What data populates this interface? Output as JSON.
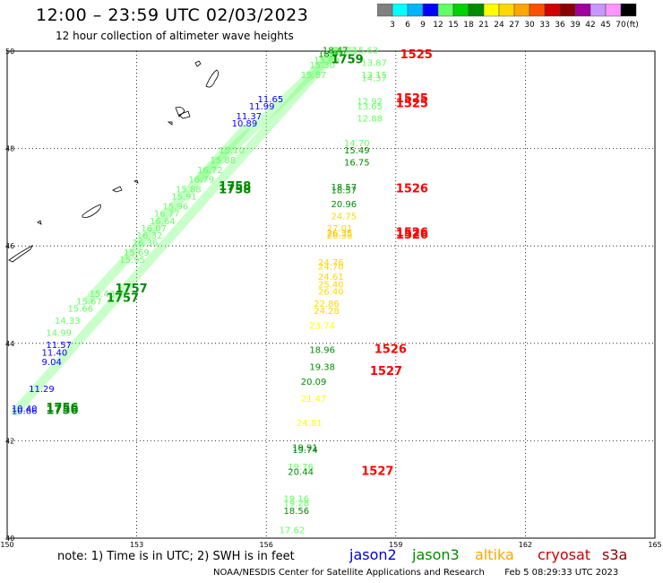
{
  "header": {
    "title": "12:00 – 23:59 UTC 02/03/2023",
    "subtitle": "12 hour collection of altimeter wave heights"
  },
  "colorbar": {
    "labels": [
      "3",
      "6",
      "9",
      "12",
      "15",
      "18",
      "21",
      "24",
      "27",
      "30",
      "33",
      "36",
      "39",
      "42",
      "45",
      "70"
    ],
    "unit": "(ft)",
    "colors": [
      "#808080",
      "#00ffff",
      "#00b4ff",
      "#0000ff",
      "#64ff64",
      "#00d200",
      "#008c00",
      "#ffff00",
      "#ffd700",
      "#ffa500",
      "#ff5000",
      "#d20000",
      "#8c0000",
      "#a000a0",
      "#c896ff",
      "#ff96ff",
      "#000000"
    ]
  },
  "axes": {
    "lon_labels": [
      "150",
      "153",
      "156",
      "159",
      "162",
      "165"
    ],
    "lat_labels": [
      "50",
      "48",
      "46",
      "44",
      "42",
      "40"
    ]
  },
  "chart_data": {
    "type": "scatter",
    "xlim": [
      150,
      165
    ],
    "ylim": [
      40,
      50
    ],
    "xlabel": "",
    "ylabel": "",
    "tracks": [
      {
        "name": "jason3",
        "color": "#64ff64",
        "start": [
          150.2,
          42.6
        ],
        "end": [
          157.6,
          50.0
        ],
        "time": "1756",
        "time_pos": [
          151.0,
          42.6
        ]
      },
      {
        "name": "jason3",
        "color": "#64ff64",
        "start": [
          151.9,
          44.9
        ],
        "end": [
          155.5,
          48.4
        ],
        "time": "1757",
        "time_pos": [
          152.2,
          45.2
        ]
      },
      {
        "name": "jason3",
        "color": "#64ff64",
        "start": [
          154.5,
          47.4
        ],
        "end": [
          157.6,
          50.0
        ],
        "time": "1758",
        "time_pos": [
          154.8,
          47.8
        ]
      },
      {
        "name": "jason3",
        "color": "#64ff64",
        "start": [
          157.6,
          50.0
        ],
        "end": [
          158.0,
          50.0
        ],
        "time": "1759",
        "time_pos": [
          158.0,
          49.8
        ]
      }
    ],
    "labels": [
      {
        "text": "15.63",
        "lon": 158.0,
        "lat": 49.95,
        "color": "#64ff64"
      },
      {
        "text": "18.47",
        "lon": 157.3,
        "lat": 49.95,
        "color": "#008c00"
      },
      {
        "text": "18.07",
        "lon": 157.2,
        "lat": 49.88,
        "color": "#008c00"
      },
      {
        "text": "15.89",
        "lon": 157.1,
        "lat": 49.75,
        "color": "#64ff64"
      },
      {
        "text": "15.30",
        "lon": 157.0,
        "lat": 49.65,
        "color": "#64ff64"
      },
      {
        "text": "15.87",
        "lon": 156.8,
        "lat": 49.45,
        "color": "#64ff64"
      },
      {
        "text": "13.87",
        "lon": 158.2,
        "lat": 49.7,
        "color": "#64ff64"
      },
      {
        "text": "13.15",
        "lon": 158.2,
        "lat": 49.45,
        "color": "#64ff64"
      },
      {
        "text": "14.37",
        "lon": 158.2,
        "lat": 49.38,
        "color": "#64ff64"
      },
      {
        "text": "11.65",
        "lon": 155.8,
        "lat": 48.95,
        "color": "#0000ff"
      },
      {
        "text": "11.99",
        "lon": 155.6,
        "lat": 48.8,
        "color": "#0000ff"
      },
      {
        "text": "11.37",
        "lon": 155.3,
        "lat": 48.6,
        "color": "#0000ff"
      },
      {
        "text": "10.89",
        "lon": 155.2,
        "lat": 48.45,
        "color": "#0000ff"
      },
      {
        "text": "12.92",
        "lon": 158.1,
        "lat": 48.9,
        "color": "#64ff64"
      },
      {
        "text": "13.65",
        "lon": 158.1,
        "lat": 48.8,
        "color": "#64ff64"
      },
      {
        "text": "12.88",
        "lon": 158.1,
        "lat": 48.55,
        "color": "#64ff64"
      },
      {
        "text": "14.70",
        "lon": 157.8,
        "lat": 48.05,
        "color": "#64ff64"
      },
      {
        "text": "15.49",
        "lon": 157.8,
        "lat": 47.9,
        "color": "#008c00"
      },
      {
        "text": "16.75",
        "lon": 157.8,
        "lat": 47.65,
        "color": "#008c00"
      },
      {
        "text": "15.10",
        "lon": 154.9,
        "lat": 47.9,
        "color": "#64ff64"
      },
      {
        "text": "15.88",
        "lon": 154.7,
        "lat": 47.7,
        "color": "#64ff64"
      },
      {
        "text": "16.72",
        "lon": 154.4,
        "lat": 47.5,
        "color": "#64ff64"
      },
      {
        "text": "16.79",
        "lon": 154.2,
        "lat": 47.3,
        "color": "#64ff64"
      },
      {
        "text": "15.88",
        "lon": 153.9,
        "lat": 47.1,
        "color": "#64ff64"
      },
      {
        "text": "15.91",
        "lon": 153.8,
        "lat": 46.95,
        "color": "#64ff64"
      },
      {
        "text": "15.96",
        "lon": 153.6,
        "lat": 46.75,
        "color": "#64ff64"
      },
      {
        "text": "16.77",
        "lon": 153.4,
        "lat": 46.6,
        "color": "#64ff64"
      },
      {
        "text": "16.64",
        "lon": 153.3,
        "lat": 46.45,
        "color": "#64ff64"
      },
      {
        "text": "16.07",
        "lon": 153.1,
        "lat": 46.3,
        "color": "#64ff64"
      },
      {
        "text": "16.32",
        "lon": 153.0,
        "lat": 46.15,
        "color": "#64ff64"
      },
      {
        "text": "16.36",
        "lon": 152.9,
        "lat": 46.0,
        "color": "#64ff64"
      },
      {
        "text": "15.69",
        "lon": 152.7,
        "lat": 45.8,
        "color": "#64ff64"
      },
      {
        "text": "15.95",
        "lon": 152.6,
        "lat": 45.65,
        "color": "#64ff64"
      },
      {
        "text": "18.57",
        "lon": 157.5,
        "lat": 47.15,
        "color": "#008c00"
      },
      {
        "text": "18.57",
        "lon": 157.5,
        "lat": 47.08,
        "color": "#008c00"
      },
      {
        "text": "20.96",
        "lon": 157.5,
        "lat": 46.8,
        "color": "#008c00"
      },
      {
        "text": "24.75",
        "lon": 157.5,
        "lat": 46.55,
        "color": "#ffd700"
      },
      {
        "text": "27.01",
        "lon": 157.4,
        "lat": 46.3,
        "color": "#ffd700"
      },
      {
        "text": "26.35",
        "lon": 157.4,
        "lat": 46.2,
        "color": "#ffa500"
      },
      {
        "text": "26.38",
        "lon": 157.4,
        "lat": 46.15,
        "color": "#ffd700"
      },
      {
        "text": "24.76",
        "lon": 157.2,
        "lat": 45.6,
        "color": "#ffd700"
      },
      {
        "text": "24.70",
        "lon": 157.2,
        "lat": 45.52,
        "color": "#ffd700"
      },
      {
        "text": "24.61",
        "lon": 157.2,
        "lat": 45.3,
        "color": "#ffd700"
      },
      {
        "text": "25.40",
        "lon": 157.2,
        "lat": 45.15,
        "color": "#ffd700"
      },
      {
        "text": "26.40",
        "lon": 157.2,
        "lat": 45.0,
        "color": "#ffd700"
      },
      {
        "text": "22.86",
        "lon": 157.1,
        "lat": 44.75,
        "color": "#ffd700"
      },
      {
        "text": "24.28",
        "lon": 157.1,
        "lat": 44.6,
        "color": "#ffd700"
      },
      {
        "text": "23.74",
        "lon": 157.0,
        "lat": 44.3,
        "color": "#ffff00"
      },
      {
        "text": "15.43",
        "lon": 151.9,
        "lat": 44.95,
        "color": "#64ff64"
      },
      {
        "text": "15.67",
        "lon": 151.6,
        "lat": 44.8,
        "color": "#64ff64"
      },
      {
        "text": "15.66",
        "lon": 151.4,
        "lat": 44.65,
        "color": "#64ff64"
      },
      {
        "text": "14.33",
        "lon": 151.1,
        "lat": 44.4,
        "color": "#64ff64"
      },
      {
        "text": "14.99",
        "lon": 150.9,
        "lat": 44.15,
        "color": "#64ff64"
      },
      {
        "text": "11.57",
        "lon": 150.9,
        "lat": 43.9,
        "color": "#0000ff"
      },
      {
        "text": "11.40",
        "lon": 150.8,
        "lat": 43.75,
        "color": "#0000ff"
      },
      {
        "text": "9.04",
        "lon": 150.8,
        "lat": 43.55,
        "color": "#0000ff"
      },
      {
        "text": "11.29",
        "lon": 150.5,
        "lat": 43.0,
        "color": "#0000ff"
      },
      {
        "text": "10.40",
        "lon": 150.1,
        "lat": 42.6,
        "color": "#0000ff"
      },
      {
        "text": "10.66",
        "lon": 150.1,
        "lat": 42.55,
        "color": "#0000ff"
      },
      {
        "text": "18.96",
        "lon": 157.0,
        "lat": 43.8,
        "color": "#008c00"
      },
      {
        "text": "19.38",
        "lon": 157.0,
        "lat": 43.45,
        "color": "#008c00"
      },
      {
        "text": "20.09",
        "lon": 156.8,
        "lat": 43.15,
        "color": "#008c00"
      },
      {
        "text": "21.47",
        "lon": 156.8,
        "lat": 42.8,
        "color": "#ffff00"
      },
      {
        "text": "24.81",
        "lon": 156.7,
        "lat": 42.3,
        "color": "#ffff00"
      },
      {
        "text": "19.91",
        "lon": 156.6,
        "lat": 41.8,
        "color": "#008c00"
      },
      {
        "text": "19.74",
        "lon": 156.6,
        "lat": 41.75,
        "color": "#008c00"
      },
      {
        "text": "19.76",
        "lon": 156.5,
        "lat": 41.4,
        "color": "#64ff64"
      },
      {
        "text": "20.44",
        "lon": 156.5,
        "lat": 41.3,
        "color": "#008c00"
      },
      {
        "text": "19.16",
        "lon": 156.4,
        "lat": 40.75,
        "color": "#64ff64"
      },
      {
        "text": "19.28",
        "lon": 156.4,
        "lat": 40.65,
        "color": "#64ff64"
      },
      {
        "text": "18.56",
        "lon": 156.4,
        "lat": 40.5,
        "color": "#008c00"
      },
      {
        "text": "17.62",
        "lon": 156.3,
        "lat": 40.1,
        "color": "#64ff64"
      }
    ],
    "track_times": [
      {
        "text": "1525",
        "lon": 159.1,
        "lat": 49.85,
        "color": "#ff0000"
      },
      {
        "text": "1525",
        "lon": 159.0,
        "lat": 48.95,
        "color": "#ff0000"
      },
      {
        "text": "1525",
        "lon": 159.0,
        "lat": 48.85,
        "color": "#ff0000"
      },
      {
        "text": "1526",
        "lon": 159.0,
        "lat": 47.1,
        "color": "#ff0000"
      },
      {
        "text": "1526",
        "lon": 159.0,
        "lat": 46.2,
        "color": "#ff0000"
      },
      {
        "text": "1526",
        "lon": 159.0,
        "lat": 46.15,
        "color": "#ff0000"
      },
      {
        "text": "1526",
        "lon": 158.5,
        "lat": 43.8,
        "color": "#ff0000"
      },
      {
        "text": "1527",
        "lon": 158.4,
        "lat": 43.35,
        "color": "#ff0000"
      },
      {
        "text": "1527",
        "lon": 158.2,
        "lat": 41.3,
        "color": "#ff0000"
      },
      {
        "text": "1757",
        "lon": 152.5,
        "lat": 45.05,
        "color": "#008c00"
      },
      {
        "text": "1757",
        "lon": 152.3,
        "lat": 44.85,
        "color": "#008c00"
      },
      {
        "text": "1758",
        "lon": 154.9,
        "lat": 47.15,
        "color": "#008c00"
      },
      {
        "text": "1758",
        "lon": 154.9,
        "lat": 47.08,
        "color": "#008c00"
      },
      {
        "text": "1759",
        "lon": 157.5,
        "lat": 49.75,
        "color": "#008c00"
      },
      {
        "text": "1756",
        "lon": 150.9,
        "lat": 42.6,
        "color": "#008c00"
      },
      {
        "text": "1756",
        "lon": 150.9,
        "lat": 42.55,
        "color": "#008c00"
      }
    ]
  },
  "note": {
    "text": "note:  1) Time is in UTC;  2) SWH is in feet"
  },
  "satellites": [
    {
      "name": "jason2",
      "color": "#0000cc"
    },
    {
      "name": "jason3",
      "color": "#008c00"
    },
    {
      "name": "altika",
      "color": "#ffa500"
    },
    {
      "name": "cryosat",
      "color": "#cc0000"
    },
    {
      "name": "s3a",
      "color": "#8b0000"
    }
  ],
  "footer": {
    "credit": "NOAA/NESDIS Center for Satellite Applications and Research",
    "timestamp": "Feb  5 08:29:33 UTC 2023"
  }
}
